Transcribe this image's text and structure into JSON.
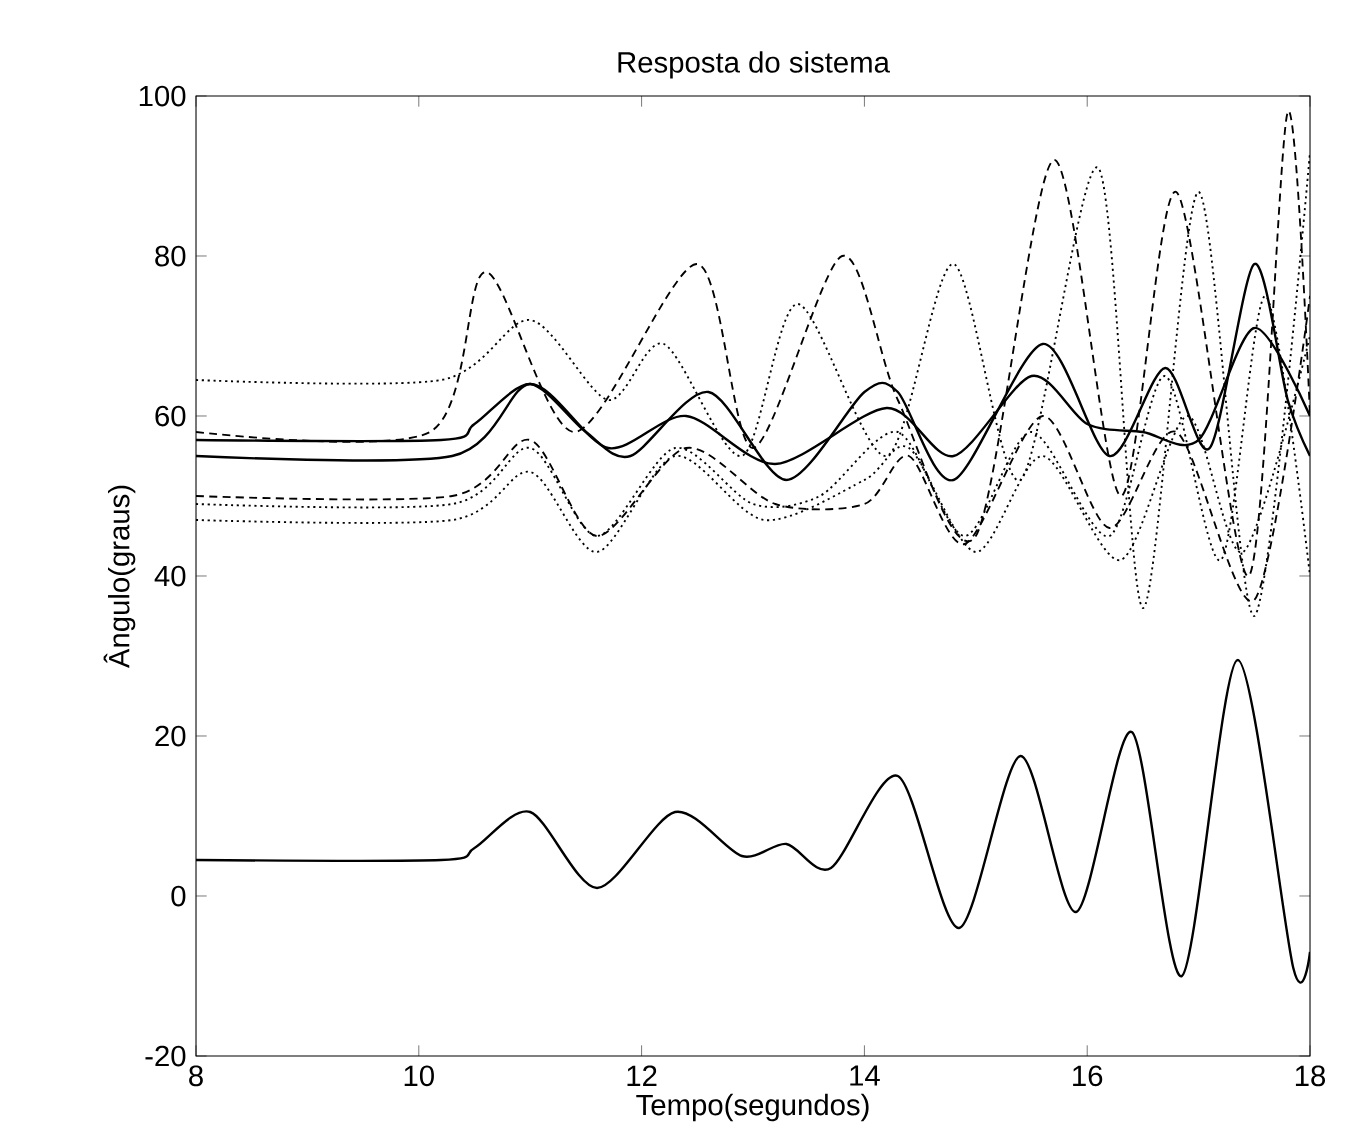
{
  "chart_data": {
    "type": "line",
    "title": "Resposta do sistema",
    "xlabel": "Tempo(segundos)",
    "ylabel": "Ângulo(graus)",
    "xlim": [
      8,
      18
    ],
    "ylim": [
      -20,
      100
    ],
    "xticks": [
      8,
      10,
      12,
      14,
      16,
      18
    ],
    "yticks": [
      -20,
      0,
      20,
      40,
      60,
      80,
      100
    ],
    "grid": false,
    "marker": "none",
    "series": [
      {
        "color": "#000000",
        "line_style": "solid",
        "x": [
          8,
          10.2,
          10.5,
          11,
          11.5,
          11.9,
          12.6,
          13.3,
          14.0,
          14.3,
          14.8,
          15.6,
          16.2,
          16.7,
          17.1,
          17.5,
          17.8,
          18
        ],
        "values": [
          57,
          57,
          59,
          64,
          58,
          55,
          63,
          52,
          63,
          63,
          52,
          69,
          55,
          66,
          56,
          79,
          62,
          55
        ]
      },
      {
        "color": "#000000",
        "line_style": "solid",
        "x": [
          8,
          10.3,
          11,
          11.7,
          12.4,
          13.2,
          14.2,
          14.8,
          15.5,
          16.0,
          16.5,
          17.0,
          17.5,
          18
        ],
        "values": [
          55,
          55,
          64,
          56,
          60,
          54,
          61,
          55,
          65,
          59,
          58,
          57,
          71,
          60
        ]
      },
      {
        "color": "#000000",
        "line_style": "dashed",
        "x": [
          8,
          10.1,
          10.6,
          11.4,
          12.5,
          13.0,
          13.8,
          14.3,
          15.0,
          15.7,
          16.3,
          16.8,
          17.45,
          17.8,
          18
        ],
        "values": [
          58,
          58,
          78,
          58,
          79,
          56,
          80,
          62,
          45,
          92,
          50,
          88,
          40,
          98,
          60
        ]
      },
      {
        "color": "#000000",
        "line_style": "dotted",
        "x": [
          8,
          10.2,
          11,
          11.7,
          12.2,
          12.9,
          13.4,
          14.2,
          14.8,
          15.4,
          16.1,
          16.5,
          17.0,
          17.5,
          18
        ],
        "values": [
          64.5,
          64.5,
          72,
          62,
          69,
          55,
          74,
          55,
          79,
          52,
          91,
          36,
          88,
          35,
          93
        ]
      },
      {
        "color": "#000000",
        "line_style": "dotted",
        "x": [
          8,
          10.3,
          11,
          11.6,
          12.3,
          13.0,
          13.6,
          14.3,
          14.9,
          15.5,
          16.2,
          16.7,
          17.2,
          17.6,
          18
        ],
        "values": [
          49,
          49,
          56,
          45,
          56,
          49,
          50,
          58,
          45,
          58,
          45,
          65,
          42,
          75,
          40
        ]
      },
      {
        "color": "#000000",
        "line_style": "dotted",
        "x": [
          8,
          10.3,
          11,
          11.6,
          12.3,
          13.1,
          14.0,
          14.4,
          15.0,
          15.6,
          16.3,
          16.9,
          17.4,
          18
        ],
        "values": [
          47,
          47,
          53,
          43,
          55,
          47,
          52,
          56,
          43,
          55,
          42,
          60,
          43,
          70
        ]
      },
      {
        "color": "#000000",
        "line_style": "dashed",
        "x": [
          8,
          10.3,
          11,
          11.6,
          12.4,
          13.2,
          14.0,
          14.4,
          14.9,
          15.6,
          16.2,
          16.8,
          17.5,
          18
        ],
        "values": [
          50,
          50,
          57,
          45,
          56,
          49,
          49,
          55,
          44,
          60,
          46,
          58,
          37,
          75
        ]
      },
      {
        "color": "#000000",
        "line_style": "solid",
        "x": [
          8,
          10.2,
          10.5,
          11,
          11.6,
          12.3,
          12.9,
          13.3,
          13.7,
          14.3,
          14.85,
          15.4,
          15.9,
          16.4,
          16.85,
          17.35,
          17.85,
          18
        ],
        "values": [
          4.5,
          4.5,
          6,
          10.5,
          1,
          10.5,
          5,
          6.5,
          3.5,
          15,
          -4,
          17.5,
          -2,
          20.5,
          -10,
          29.5,
          -9,
          -7
        ]
      }
    ]
  }
}
